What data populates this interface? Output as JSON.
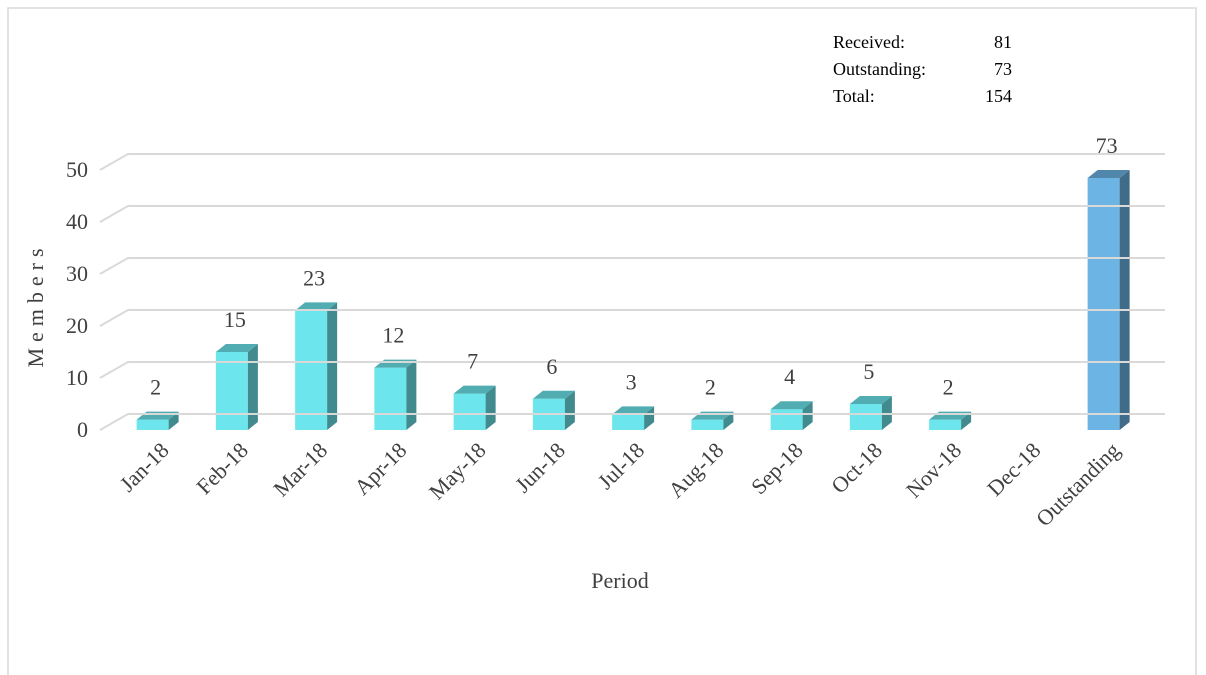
{
  "chart_data": {
    "type": "bar3d",
    "categories": [
      "Jan-18",
      "Feb-18",
      "Mar-18",
      "Apr-18",
      "May-18",
      "Jun-18",
      "Jul-18",
      "Aug-18",
      "Sep-18",
      "Oct-18",
      "Nov-18",
      "Dec-18",
      "Outstanding"
    ],
    "values": [
      2,
      15,
      23,
      12,
      7,
      6,
      3,
      2,
      4,
      5,
      2,
      null,
      73
    ],
    "colors": [
      "#6ce6ec",
      "#6ce6ec",
      "#6ce6ec",
      "#6ce6ec",
      "#6ce6ec",
      "#6ce6ec",
      "#6ce6ec",
      "#6ce6ec",
      "#6ce6ec",
      "#6ce6ec",
      "#6ce6ec",
      "#6ce6ec",
      "#6cb4e4"
    ],
    "ylim": [
      0,
      50
    ],
    "yticks": [
      0,
      10,
      20,
      30,
      40,
      50
    ],
    "grid": true,
    "ylabel": "Members",
    "xlabel": "Period",
    "summary": [
      {
        "label": "Received:",
        "value": 81
      },
      {
        "label": "Outstanding:",
        "value": 73
      },
      {
        "label": "Total:",
        "value": 154
      }
    ]
  }
}
